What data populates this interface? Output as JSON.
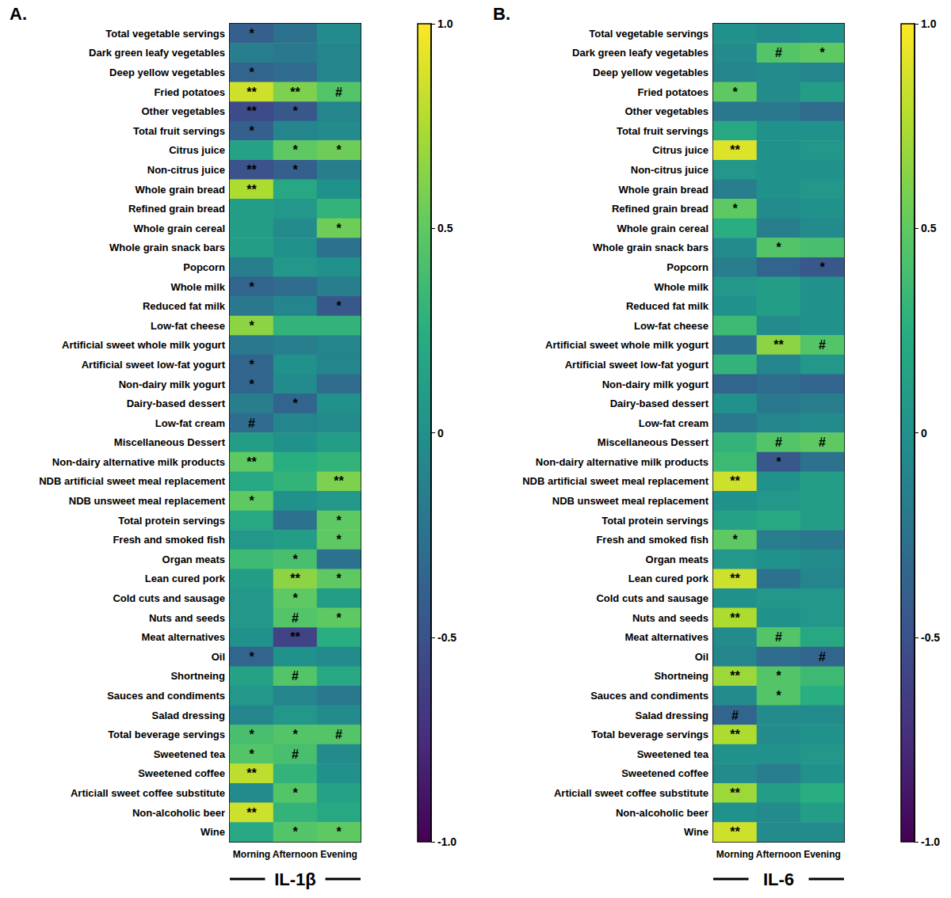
{
  "chart_data": [
    {
      "type": "heatmap",
      "title": "A.",
      "xlabel": "IL-1β",
      "x": [
        "Morning",
        "Afternoon",
        "Evening"
      ],
      "categories": [
        "Total vegetable servings",
        "Dark green leafy vegetables",
        "Deep yellow vegetables",
        "Fried potatoes",
        "Other vegetables",
        "Total fruit servings",
        "Citrus juice",
        "Non-citrus juice",
        "Whole grain bread",
        "Refined grain bread",
        "Whole grain cereal",
        "Whole grain snack bars",
        "Popcorn",
        "Whole milk",
        "Reduced fat milk",
        "Low-fat cheese",
        "Artificial sweet whole milk yogurt",
        "Artificial sweet low-fat yogurt",
        "Non-dairy milk yogurt",
        "Dairy-based dessert",
        "Low-fat cream",
        "Miscellaneous Dessert",
        "Non-dairy alternative milk products",
        "NDB artificial sweet meal replacement",
        "NDB unsweet meal replacement",
        "Total protein servings",
        "Fresh and smoked fish",
        "Organ meats",
        "Lean cured pork",
        "Cold cuts and sausage",
        "Nuts and seeds",
        "Meat alternatives",
        "Oil",
        "Shortneing",
        "Sauces and condiments",
        "Salad dressing",
        "Total beverage servings",
        "Sweetened tea",
        "Sweetened coffee",
        "Articiall sweet coffee substitute",
        "Non-alcoholic beer",
        "Wine"
      ],
      "values": [
        [
          -0.4,
          -0.25,
          -0.05
        ],
        [
          -0.15,
          -0.2,
          -0.1
        ],
        [
          -0.35,
          -0.3,
          -0.1
        ],
        [
          0.85,
          0.6,
          0.45
        ],
        [
          -0.55,
          -0.45,
          -0.1
        ],
        [
          -0.4,
          -0.1,
          -0.05
        ],
        [
          0.15,
          0.5,
          0.55
        ],
        [
          -0.5,
          -0.4,
          -0.15
        ],
        [
          0.75,
          0.2,
          0.0
        ],
        [
          0.1,
          0.05,
          0.3
        ],
        [
          0.1,
          -0.05,
          0.55
        ],
        [
          0.1,
          0.0,
          -0.25
        ],
        [
          -0.15,
          0.05,
          0.0
        ],
        [
          -0.35,
          -0.3,
          -0.15
        ],
        [
          -0.2,
          -0.1,
          -0.45
        ],
        [
          0.65,
          0.3,
          0.3
        ],
        [
          -0.2,
          -0.15,
          -0.1
        ],
        [
          -0.35,
          0.0,
          -0.1
        ],
        [
          -0.35,
          -0.05,
          -0.3
        ],
        [
          -0.15,
          -0.35,
          0.0
        ],
        [
          -0.3,
          -0.1,
          -0.05
        ],
        [
          0.1,
          0.0,
          0.1
        ],
        [
          0.5,
          0.25,
          0.3
        ],
        [
          0.2,
          0.3,
          0.6
        ],
        [
          0.5,
          0.0,
          0.05
        ],
        [
          0.2,
          -0.25,
          0.5
        ],
        [
          0.05,
          0.1,
          0.5
        ],
        [
          0.35,
          0.4,
          -0.25
        ],
        [
          0.1,
          0.65,
          0.5
        ],
        [
          0.05,
          0.5,
          0.1
        ],
        [
          0.05,
          0.45,
          0.5
        ],
        [
          0.0,
          -0.6,
          0.25
        ],
        [
          -0.35,
          0.0,
          -0.05
        ],
        [
          0.15,
          0.45,
          0.2
        ],
        [
          0.05,
          -0.1,
          -0.2
        ],
        [
          -0.1,
          0.05,
          -0.05
        ],
        [
          0.4,
          0.45,
          0.45
        ],
        [
          0.45,
          0.4,
          -0.05
        ],
        [
          0.8,
          0.3,
          0.0
        ],
        [
          -0.05,
          0.45,
          0.15
        ],
        [
          0.85,
          0.3,
          0.2
        ],
        [
          0.2,
          0.45,
          0.5
        ]
      ],
      "annotations": [
        [
          "*",
          null,
          null
        ],
        [
          null,
          null,
          null
        ],
        [
          "*",
          null,
          null
        ],
        [
          "**",
          "**",
          "#"
        ],
        [
          "**",
          "*",
          null
        ],
        [
          "*",
          null,
          null
        ],
        [
          null,
          "*",
          "*"
        ],
        [
          "**",
          "*",
          null
        ],
        [
          "**",
          null,
          null
        ],
        [
          null,
          null,
          null
        ],
        [
          null,
          null,
          "*"
        ],
        [
          null,
          null,
          null
        ],
        [
          null,
          null,
          null
        ],
        [
          "*",
          null,
          null
        ],
        [
          null,
          null,
          "*"
        ],
        [
          "*",
          null,
          null
        ],
        [
          null,
          null,
          null
        ],
        [
          "*",
          null,
          null
        ],
        [
          "*",
          null,
          null
        ],
        [
          null,
          "*",
          null
        ],
        [
          "#",
          null,
          null
        ],
        [
          null,
          null,
          null
        ],
        [
          "**",
          null,
          null
        ],
        [
          null,
          null,
          "**"
        ],
        [
          "*",
          null,
          null
        ],
        [
          null,
          null,
          "*"
        ],
        [
          null,
          null,
          "*"
        ],
        [
          null,
          "*",
          null
        ],
        [
          null,
          "**",
          "*"
        ],
        [
          null,
          "*",
          null
        ],
        [
          null,
          "#",
          "*"
        ],
        [
          null,
          "**",
          null
        ],
        [
          "*",
          null,
          null
        ],
        [
          null,
          "#",
          null
        ],
        [
          null,
          null,
          null
        ],
        [
          null,
          null,
          null
        ],
        [
          "*",
          "*",
          "#"
        ],
        [
          "*",
          "#",
          null
        ],
        [
          "**",
          null,
          null
        ],
        [
          null,
          "*",
          null
        ],
        [
          "**",
          null,
          null
        ],
        [
          null,
          "*",
          "*"
        ]
      ],
      "color_range": [
        -1,
        1
      ],
      "color_ticks": [
        {
          "value": -1,
          "label": "-1.0"
        },
        {
          "value": -0.5,
          "label": "-0.5"
        },
        0,
        {
          "value": 0.5,
          "label": "0.5"
        },
        {
          "value": 1,
          "label": "1.0"
        }
      ]
    },
    {
      "type": "heatmap",
      "title": "B.",
      "xlabel": "IL-6",
      "x": [
        "Morning",
        "Afternoon",
        "Evening"
      ],
      "categories": [
        "Total vegetable servings",
        "Dark green leafy vegetables",
        "Deep yellow vegetables",
        "Fried potatoes",
        "Other vegetables",
        "Total fruit servings",
        "Citrus juice",
        "Non-citrus juice",
        "Whole grain bread",
        "Refined grain bread",
        "Whole grain cereal",
        "Whole grain snack bars",
        "Popcorn",
        "Whole milk",
        "Reduced fat milk",
        "Low-fat cheese",
        "Artificial sweet whole milk yogurt",
        "Artificial sweet low-fat yogurt",
        "Non-dairy milk yogurt",
        "Dairy-based dessert",
        "Low-fat cream",
        "Miscellaneous Dessert",
        "Non-dairy alternative milk products",
        "NDB artificial sweet meal replacement",
        "NDB unsweet meal replacement",
        "Total protein servings",
        "Fresh and smoked fish",
        "Organ meats",
        "Lean cured pork",
        "Cold cuts and sausage",
        "Nuts and seeds",
        "Meat alternatives",
        "Oil",
        "Shortneing",
        "Sauces and condiments",
        "Salad dressing",
        "Total beverage servings",
        "Sweetened tea",
        "Sweetened coffee",
        "Articiall sweet coffee substitute",
        "Non-alcoholic beer",
        "Wine"
      ],
      "values": [
        [
          0.0,
          -0.05,
          0.0
        ],
        [
          -0.05,
          0.45,
          0.5
        ],
        [
          -0.1,
          -0.05,
          -0.1
        ],
        [
          0.5,
          -0.05,
          0.1
        ],
        [
          -0.2,
          -0.2,
          -0.3
        ],
        [
          0.2,
          0.0,
          0.0
        ],
        [
          0.9,
          0.0,
          0.05
        ],
        [
          0.05,
          0.0,
          0.0
        ],
        [
          -0.15,
          0.0,
          0.05
        ],
        [
          0.5,
          -0.05,
          0.0
        ],
        [
          0.25,
          -0.15,
          -0.05
        ],
        [
          -0.05,
          0.45,
          0.4
        ],
        [
          -0.15,
          -0.35,
          -0.45
        ],
        [
          0.05,
          0.1,
          0.0
        ],
        [
          0.0,
          0.1,
          0.0
        ],
        [
          0.35,
          -0.05,
          0.0
        ],
        [
          -0.25,
          0.65,
          0.45
        ],
        [
          0.3,
          -0.1,
          0.05
        ],
        [
          -0.35,
          -0.3,
          -0.35
        ],
        [
          0.0,
          -0.2,
          -0.15
        ],
        [
          -0.2,
          -0.1,
          -0.05
        ],
        [
          0.3,
          0.45,
          0.5
        ],
        [
          0.35,
          -0.45,
          -0.25
        ],
        [
          0.85,
          0.0,
          0.1
        ],
        [
          0.0,
          0.05,
          0.1
        ],
        [
          0.15,
          0.2,
          0.1
        ],
        [
          0.5,
          -0.15,
          -0.2
        ],
        [
          0.05,
          0.0,
          -0.05
        ],
        [
          0.85,
          -0.25,
          -0.1
        ],
        [
          0.0,
          0.05,
          0.05
        ],
        [
          0.75,
          0.0,
          0.05
        ],
        [
          -0.05,
          0.45,
          0.2
        ],
        [
          -0.1,
          -0.3,
          -0.35
        ],
        [
          0.7,
          0.45,
          0.35
        ],
        [
          -0.05,
          0.45,
          0.25
        ],
        [
          -0.35,
          -0.05,
          -0.05
        ],
        [
          0.75,
          -0.05,
          0.0
        ],
        [
          0.0,
          0.0,
          0.05
        ],
        [
          -0.05,
          -0.15,
          0.0
        ],
        [
          0.7,
          0.1,
          0.25
        ],
        [
          0.0,
          -0.05,
          0.1
        ],
        [
          0.85,
          -0.05,
          -0.05
        ]
      ],
      "annotations": [
        [
          null,
          null,
          null
        ],
        [
          null,
          "#",
          "*"
        ],
        [
          null,
          null,
          null
        ],
        [
          "*",
          null,
          null
        ],
        [
          null,
          null,
          null
        ],
        [
          null,
          null,
          null
        ],
        [
          "**",
          null,
          null
        ],
        [
          null,
          null,
          null
        ],
        [
          null,
          null,
          null
        ],
        [
          "*",
          null,
          null
        ],
        [
          null,
          null,
          null
        ],
        [
          null,
          "*",
          null
        ],
        [
          null,
          null,
          "*"
        ],
        [
          null,
          null,
          null
        ],
        [
          null,
          null,
          null
        ],
        [
          null,
          null,
          null
        ],
        [
          null,
          "**",
          "#"
        ],
        [
          null,
          null,
          null
        ],
        [
          null,
          null,
          null
        ],
        [
          null,
          null,
          null
        ],
        [
          null,
          null,
          null
        ],
        [
          null,
          "#",
          "#"
        ],
        [
          null,
          "*",
          null
        ],
        [
          "**",
          null,
          null
        ],
        [
          null,
          null,
          null
        ],
        [
          null,
          null,
          null
        ],
        [
          "*",
          null,
          null
        ],
        [
          null,
          null,
          null
        ],
        [
          "**",
          null,
          null
        ],
        [
          null,
          null,
          null
        ],
        [
          "**",
          null,
          null
        ],
        [
          null,
          "#",
          null
        ],
        [
          null,
          null,
          "#"
        ],
        [
          "**",
          "*",
          null
        ],
        [
          null,
          "*",
          null
        ],
        [
          "#",
          null,
          null
        ],
        [
          "**",
          null,
          null
        ],
        [
          null,
          null,
          null
        ],
        [
          null,
          null,
          null
        ],
        [
          "**",
          null,
          null
        ],
        [
          null,
          null,
          null
        ],
        [
          "**",
          null,
          null
        ]
      ],
      "color_range": [
        -1,
        1
      ],
      "color_ticks": [
        {
          "value": -1,
          "label": "-1.0"
        },
        {
          "value": -0.5,
          "label": "-0.5"
        },
        0,
        {
          "value": 0.5,
          "label": "0.5"
        },
        {
          "value": 1,
          "label": "1.0"
        }
      ]
    }
  ]
}
